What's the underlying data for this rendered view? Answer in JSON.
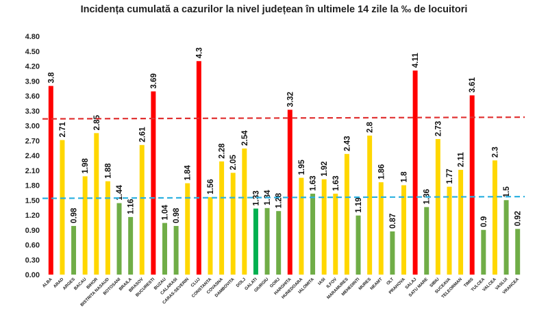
{
  "chart_data": {
    "type": "bar",
    "title": "Incidența cumulată a cazurilor la nivel județean în ultimele 14 zile la ‰ de locuitori",
    "xlabel": "",
    "ylabel": "",
    "ylim": [
      0,
      4.8
    ],
    "yticks": [
      "0.00",
      "0.30",
      "0.60",
      "0.90",
      "1.20",
      "1.50",
      "1.80",
      "2.10",
      "2.40",
      "2.70",
      "3.00",
      "3.30",
      "3.60",
      "3.90",
      "4.20",
      "4.50",
      "4.80"
    ],
    "grid": false,
    "legend": "none",
    "categories": [
      "ALBA",
      "ARAD",
      "ARGES",
      "BACAU",
      "BIHOR",
      "BISTRITA NASAUD",
      "BOTOSANI",
      "BRAILA",
      "BRASOV",
      "BUCURESTI",
      "BUZAU",
      "CALARASI",
      "CARAS-SEVERIN",
      "CLUJ",
      "CONSTANTA",
      "COVASNA",
      "DAMBOVITA",
      "DOLJ",
      "GALATI",
      "GIURGIU",
      "GORJ",
      "HARGHITA",
      "HUNEDOARA",
      "IALOMITA",
      "IASI",
      "ILFOV",
      "MARAMURES",
      "MEHEDINTI",
      "MURES",
      "NEAMT",
      "OLT",
      "PRAHOVA",
      "SALAJ",
      "SATU MARE",
      "SIBIU",
      "SUCEAVA",
      "TELEORMAN",
      "TIMIS",
      "TULCEA",
      "VALCEA",
      "VASLUI",
      "VRANCEA"
    ],
    "values": [
      3.8,
      2.71,
      0.98,
      1.98,
      2.85,
      1.88,
      1.44,
      1.16,
      2.61,
      3.69,
      1.04,
      0.98,
      1.84,
      4.3,
      1.56,
      2.28,
      2.05,
      2.54,
      1.33,
      1.34,
      1.28,
      3.32,
      1.95,
      1.63,
      1.92,
      1.63,
      2.43,
      1.19,
      2.8,
      1.86,
      0.87,
      1.8,
      4.11,
      1.36,
      2.73,
      1.77,
      2.11,
      3.61,
      0.9,
      2.3,
      1.5,
      0.92
    ],
    "value_labels": [
      "3.8",
      "2.71",
      "0.98",
      "1.98",
      "2.85",
      "1.88",
      "1.44",
      "1.16",
      "2.61",
      "3.69",
      "1.04",
      "0.98",
      "1.84",
      "4.3",
      "1.56",
      "2.28",
      "2.05",
      "2.54",
      "1.33",
      "1.34",
      "1.28",
      "3.32",
      "1.95",
      "1.63",
      "1.92",
      "1.63",
      "2.43",
      "1.19",
      "2.8",
      "1.86",
      "0.87",
      "1.8",
      "4.11",
      "1.36",
      "2.73",
      "1.77",
      "2.11",
      "3.61",
      "0.9",
      "2.3",
      "1.5",
      "0.92"
    ],
    "bar_colors": [
      "#ff0000",
      "#ffd700",
      "#70ad47",
      "#ffd700",
      "#ffd700",
      "#ffd700",
      "#70ad47",
      "#70ad47",
      "#ffd700",
      "#ff0000",
      "#70ad47",
      "#70ad47",
      "#ffd700",
      "#ff0000",
      "#ffd700",
      "#ffd700",
      "#ffd700",
      "#ffd700",
      "#00b050",
      "#70ad47",
      "#70ad47",
      "#ff0000",
      "#ffd700",
      "#70ad47",
      "#ffd700",
      "#ffd700",
      "#ffd700",
      "#70ad47",
      "#ffd700",
      "#ffd700",
      "#70ad47",
      "#ffd700",
      "#ff0000",
      "#70ad47",
      "#ffd700",
      "#ffd700",
      "#ffd700",
      "#ff0000",
      "#70ad47",
      "#ffd700",
      "#70ad47",
      "#70ad47"
    ],
    "threshold_lines": [
      {
        "value": 3.15,
        "color": "#e03030"
      },
      {
        "value": 1.55,
        "color": "#2ab0e0"
      }
    ]
  }
}
